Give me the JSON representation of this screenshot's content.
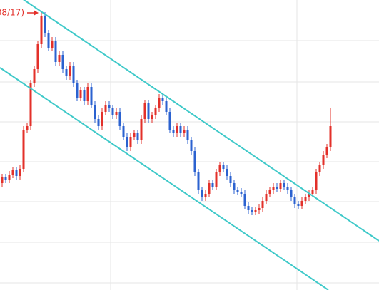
{
  "chart_data": {
    "type": "candlestick",
    "annotation": "08/17)",
    "up_color": "#e3302a",
    "down_color": "#2b62d0",
    "ylim": [
      0,
      407
    ],
    "categories": [
      null,
      null,
      null,
      null,
      null,
      null,
      null,
      null,
      null,
      null,
      null,
      null,
      null,
      null,
      null,
      null,
      null,
      null,
      null,
      null,
      null,
      null,
      null,
      null,
      null,
      null,
      null,
      null,
      null,
      null,
      null,
      null,
      null,
      null,
      null,
      null,
      null,
      null,
      null,
      null,
      null,
      null,
      null,
      null,
      null,
      null,
      null,
      null,
      null,
      null,
      null,
      null,
      null,
      null,
      null,
      null,
      null,
      null,
      null,
      null,
      null,
      null,
      null,
      null,
      null,
      null,
      null,
      null,
      null,
      null,
      null,
      null,
      null,
      null,
      null,
      null,
      null,
      null,
      null,
      null,
      null,
      null,
      null,
      null,
      null,
      null,
      null,
      null,
      null,
      null,
      null,
      null,
      null
    ],
    "open": [
      150,
      158,
      155,
      162,
      168,
      160,
      170,
      225,
      230,
      290,
      310,
      345,
      385,
      360,
      340,
      350,
      320,
      330,
      310,
      300,
      315,
      290,
      270,
      280,
      265,
      285,
      260,
      240,
      230,
      250,
      260,
      255,
      245,
      250,
      230,
      215,
      200,
      215,
      220,
      210,
      240,
      262,
      240,
      245,
      255,
      270,
      265,
      250,
      225,
      220,
      230,
      220,
      225,
      210,
      195,
      165,
      140,
      130,
      135,
      150,
      145,
      165,
      175,
      170,
      160,
      150,
      140,
      138,
      135,
      118,
      112,
      110,
      112,
      115,
      125,
      135,
      140,
      145,
      142,
      150,
      145,
      140,
      130,
      120,
      118,
      125,
      130,
      135,
      140,
      165,
      175,
      190,
      200
    ],
    "high": [
      163,
      163,
      167,
      173,
      173,
      175,
      230,
      235,
      295,
      315,
      350,
      390,
      390,
      365,
      355,
      355,
      335,
      335,
      315,
      320,
      320,
      295,
      285,
      285,
      290,
      290,
      265,
      245,
      255,
      265,
      265,
      260,
      255,
      255,
      235,
      220,
      220,
      225,
      225,
      245,
      267,
      267,
      250,
      260,
      275,
      275,
      270,
      255,
      230,
      235,
      235,
      230,
      230,
      215,
      200,
      170,
      145,
      140,
      155,
      155,
      170,
      180,
      180,
      175,
      165,
      155,
      145,
      143,
      140,
      123,
      117,
      117,
      120,
      130,
      140,
      145,
      150,
      150,
      155,
      155,
      150,
      145,
      135,
      125,
      130,
      135,
      140,
      145,
      170,
      180,
      195,
      205,
      255
    ],
    "low": [
      145,
      150,
      150,
      157,
      155,
      155,
      165,
      220,
      225,
      285,
      305,
      340,
      355,
      335,
      335,
      315,
      315,
      305,
      295,
      295,
      285,
      265,
      265,
      260,
      260,
      255,
      235,
      225,
      225,
      245,
      250,
      240,
      240,
      225,
      210,
      195,
      195,
      210,
      205,
      205,
      235,
      235,
      235,
      240,
      250,
      260,
      245,
      220,
      215,
      215,
      215,
      215,
      205,
      190,
      160,
      135,
      125,
      125,
      130,
      140,
      140,
      160,
      165,
      155,
      145,
      135,
      133,
      130,
      113,
      107,
      105,
      105,
      107,
      110,
      120,
      130,
      135,
      137,
      137,
      140,
      135,
      125,
      115,
      113,
      113,
      120,
      125,
      130,
      135,
      160,
      170,
      185,
      195
    ],
    "close": [
      158,
      155,
      162,
      168,
      160,
      170,
      225,
      230,
      290,
      310,
      345,
      385,
      360,
      340,
      350,
      320,
      330,
      310,
      300,
      315,
      290,
      270,
      280,
      265,
      285,
      260,
      240,
      230,
      250,
      260,
      255,
      245,
      250,
      230,
      215,
      200,
      215,
      220,
      210,
      240,
      262,
      240,
      245,
      255,
      270,
      265,
      250,
      225,
      220,
      230,
      220,
      225,
      210,
      195,
      165,
      140,
      130,
      135,
      150,
      145,
      165,
      175,
      170,
      160,
      150,
      140,
      138,
      135,
      118,
      112,
      110,
      112,
      115,
      125,
      135,
      140,
      145,
      142,
      150,
      145,
      140,
      130,
      120,
      118,
      125,
      130,
      135,
      140,
      165,
      175,
      190,
      200,
      230
    ]
  }
}
